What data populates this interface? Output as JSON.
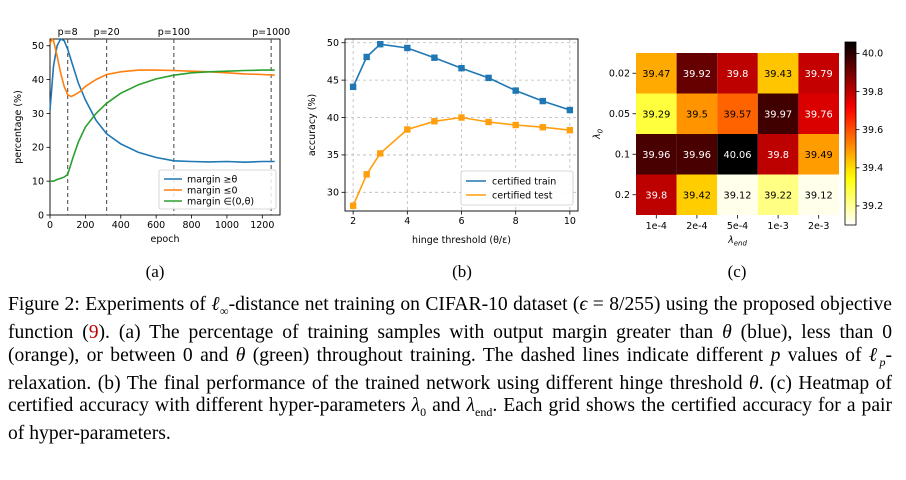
{
  "chart_data": [
    {
      "type": "line",
      "panel": "(a)",
      "xlabel": "epoch",
      "ylabel": "percentage (%)",
      "xlim": [
        0,
        1300
      ],
      "ylim": [
        0,
        52
      ],
      "xticks": [
        0,
        200,
        400,
        600,
        800,
        1000,
        1200
      ],
      "yticks": [
        0,
        10,
        20,
        30,
        40,
        50
      ],
      "grid": false,
      "legend": "bottom-right",
      "vlines": [
        {
          "x": 100,
          "label": "p=8"
        },
        {
          "x": 320,
          "label": "p=20"
        },
        {
          "x": 700,
          "label": "p=100"
        },
        {
          "x": 1250,
          "label": "p=1000"
        }
      ],
      "series": [
        {
          "name": "margin ≥θ",
          "color": "#1f77b4",
          "x": [
            0,
            20,
            40,
            60,
            80,
            100,
            130,
            160,
            200,
            260,
            320,
            400,
            500,
            600,
            700,
            800,
            900,
            1000,
            1100,
            1200,
            1270
          ],
          "y": [
            31,
            44,
            50,
            52,
            51.5,
            49,
            44,
            39,
            34,
            28,
            24,
            21,
            18.5,
            17,
            16,
            15.8,
            15.7,
            15.8,
            15.6,
            15.8,
            15.8
          ]
        },
        {
          "name": "margin ≤0",
          "color": "#ff7f0e",
          "x": [
            0,
            10,
            20,
            40,
            60,
            80,
            100,
            120,
            140,
            170,
            200,
            260,
            320,
            400,
            500,
            600,
            700,
            800,
            900,
            1000,
            1100,
            1200,
            1270
          ],
          "y": [
            50.5,
            52,
            51.5,
            47,
            42,
            38,
            35.5,
            35,
            35.5,
            36.5,
            38,
            40,
            41.5,
            42.3,
            42.8,
            42.8,
            42.7,
            42.5,
            42.3,
            42,
            41.7,
            41.5,
            41.3
          ]
        },
        {
          "name": "margin ∈(0,θ)",
          "color": "#2ca02c",
          "x": [
            0,
            20,
            40,
            60,
            80,
            100,
            130,
            160,
            200,
            260,
            320,
            400,
            500,
            600,
            700,
            800,
            900,
            1000,
            1100,
            1200,
            1270
          ],
          "y": [
            10,
            10,
            10.5,
            10.8,
            11.2,
            12,
            17,
            21.5,
            26,
            30,
            33,
            36,
            38.5,
            40.2,
            41.3,
            42,
            42.3,
            42.5,
            42.7,
            42.8,
            42.8
          ]
        }
      ]
    },
    {
      "type": "line",
      "panel": "(b)",
      "xlabel": "hinge threshold (θ/ε)",
      "ylabel": "accuracy (%)",
      "xlim": [
        1.7,
        10.3
      ],
      "ylim": [
        27.5,
        50.5
      ],
      "xticks": [
        2,
        4,
        6,
        8,
        10
      ],
      "yticks": [
        30,
        35,
        40,
        45,
        50
      ],
      "grid": true,
      "legend": "lower-right",
      "series": [
        {
          "name": "certified train",
          "color": "#1f77b4",
          "x": [
            2,
            2.5,
            3,
            4,
            5,
            6,
            7,
            8,
            9,
            10
          ],
          "y": [
            44.1,
            48.1,
            49.8,
            49.3,
            48.0,
            46.6,
            45.3,
            43.6,
            42.2,
            41.0
          ]
        },
        {
          "name": "certified test",
          "color": "#ff9f0e",
          "x": [
            2,
            2.5,
            3,
            4,
            5,
            6,
            7,
            8,
            9,
            10
          ],
          "y": [
            28.2,
            32.4,
            35.2,
            38.4,
            39.5,
            40.0,
            39.4,
            39.0,
            38.7,
            38.3
          ]
        }
      ]
    },
    {
      "type": "heatmap",
      "panel": "(c)",
      "xlabel": "λend",
      "ylabel": "λ0",
      "x_categories": [
        "1e-4",
        "2e-4",
        "5e-4",
        "1e-3",
        "2e-3"
      ],
      "y_categories": [
        "0.02",
        "0.05",
        "0.1",
        "0.2"
      ],
      "values": [
        [
          39.47,
          39.92,
          39.8,
          39.43,
          39.79
        ],
        [
          39.29,
          39.5,
          39.57,
          39.97,
          39.76
        ],
        [
          39.96,
          39.96,
          40.06,
          39.8,
          39.49
        ],
        [
          39.8,
          39.42,
          39.12,
          39.22,
          39.12
        ]
      ],
      "cell_labels": [
        [
          "39.47",
          "39.92",
          "39.8",
          "39.43",
          "39.79"
        ],
        [
          "39.29",
          "39.5",
          "39.57",
          "39.97",
          "39.76"
        ],
        [
          "39.96",
          "39.96",
          "40.06",
          "39.8",
          "39.49"
        ],
        [
          "39.8",
          "39.42",
          "39.12",
          "39.22",
          "39.12"
        ]
      ],
      "colormap": "hot_r",
      "vmin": 39.1,
      "vmax": 40.06,
      "colorbar_ticks": [
        39.2,
        39.4,
        39.6,
        39.8,
        40.0
      ]
    }
  ],
  "panel_labels": [
    "(a)",
    "(b)",
    "(c)"
  ],
  "caption": {
    "figure_label": "Figure 2:",
    "part1": " Experiments of ",
    "ell": "ℓ",
    "inf": "∞",
    "part2": "-distance net training on CIFAR-10 dataset (",
    "eps": "ϵ",
    "part3": " = 8/255) using the proposed objective function (",
    "ref": "9",
    "part4": "). (a) The percentage of training samples with output margin greater than ",
    "theta": "θ",
    "part5": " (blue), less than 0 (orange), or between 0 and ",
    "part6": " (green) throughout training. The dashed lines indicate different ",
    "p": "p",
    "part7": " values of ",
    "part8": "-relaxation. (b) The final performance of the trained network using different hinge threshold ",
    "part9": ". (c) Heatmap of certified accuracy with different hyper-parameters ",
    "lambda": "λ",
    "zero": "0",
    "part10": " and ",
    "end": "end",
    "part11": ". Each grid shows the certified accuracy for a pair of hyper-parameters."
  }
}
